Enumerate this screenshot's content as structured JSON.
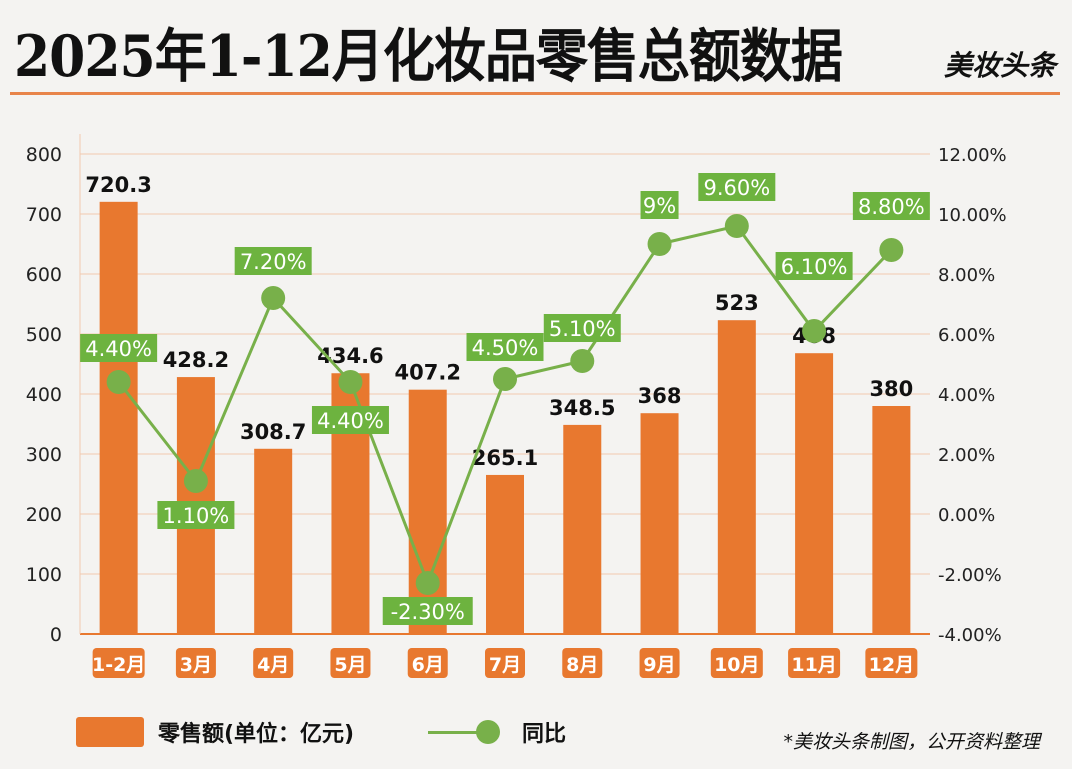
{
  "header": {
    "title": "2025年1-12月化妆品零售总额数据",
    "brand": "美妆头条"
  },
  "legend": {
    "bar_label": "零售额(单位：亿元)",
    "line_label": "同比"
  },
  "footer_note": "*美妆头条制图，公开资料整理",
  "colors": {
    "bar": "#e8782f",
    "line": "#78b04a",
    "label_box": "#6db33f",
    "grid": "#f2c9b0"
  },
  "chart_data": {
    "type": "bar+line",
    "categories": [
      "1-2月",
      "3月",
      "4月",
      "5月",
      "6月",
      "7月",
      "8月",
      "9月",
      "10月",
      "11月",
      "12月"
    ],
    "series": [
      {
        "name": "零售额(单位：亿元)",
        "type": "bar",
        "axis": "left",
        "values": [
          720.3,
          428.2,
          308.7,
          434.6,
          407.2,
          265.1,
          348.5,
          368,
          523,
          468,
          380
        ],
        "labels": [
          "720.3",
          "428.2",
          "308.7",
          "434.6",
          "407.2",
          "265.1",
          "348.5",
          "368",
          "523",
          "468",
          "380"
        ]
      },
      {
        "name": "同比",
        "type": "line",
        "axis": "right",
        "values": [
          4.4,
          1.1,
          7.2,
          4.4,
          -2.3,
          4.5,
          5.1,
          9,
          9.6,
          6.1,
          8.8
        ],
        "labels": [
          "4.40%",
          "1.10%",
          "7.20%",
          "4.40%",
          "-2.30%",
          "4.50%",
          "5.10%",
          "9%",
          "9.60%",
          "6.10%",
          "8.80%"
        ]
      }
    ],
    "y_left": {
      "range": [
        0,
        800
      ],
      "ticks": [
        "0",
        "100",
        "200",
        "300",
        "400",
        "500",
        "600",
        "700",
        "800"
      ]
    },
    "y_right": {
      "range": [
        -4,
        12
      ],
      "ticks": [
        "-4.00%",
        "-2.00%",
        "0.00%",
        "2.00%",
        "4.00%",
        "6.00%",
        "8.00%",
        "10.00%",
        "12.00%"
      ]
    },
    "grid": true,
    "legend_position": "bottom"
  }
}
